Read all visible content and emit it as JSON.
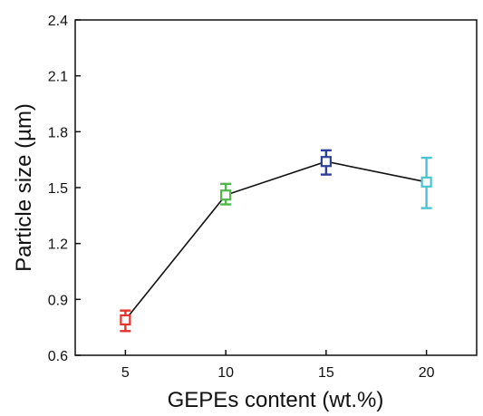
{
  "chart_data": {
    "type": "scatter",
    "xlabel": "GEPEs content (wt.%)",
    "ylabel": "Particle size (µm)",
    "xlim": [
      2.5,
      22.5
    ],
    "ylim": [
      0.6,
      2.4
    ],
    "x_ticks": [
      "5",
      "10",
      "15",
      "20"
    ],
    "x_tick_values": [
      5,
      10,
      15,
      20
    ],
    "y_ticks": [
      "0.6",
      "0.9",
      "1.2",
      "1.5",
      "1.8",
      "2.1",
      "2.4"
    ],
    "y_tick_values": [
      0.6,
      0.9,
      1.2,
      1.5,
      1.8,
      2.1,
      2.4
    ],
    "grid": false,
    "legend": "none",
    "connecting_line": true,
    "marker": "open-square",
    "points": [
      {
        "x": 5,
        "y": 0.79,
        "err_low": 0.73,
        "err_high": 0.84,
        "color": "#e8332b"
      },
      {
        "x": 10,
        "y": 1.46,
        "err_low": 1.41,
        "err_high": 1.52,
        "color": "#4db848"
      },
      {
        "x": 15,
        "y": 1.64,
        "err_low": 1.57,
        "err_high": 1.7,
        "color": "#2e3f9b"
      },
      {
        "x": 20,
        "y": 1.53,
        "err_low": 1.39,
        "err_high": 1.66,
        "color": "#4cc3d4"
      }
    ]
  }
}
